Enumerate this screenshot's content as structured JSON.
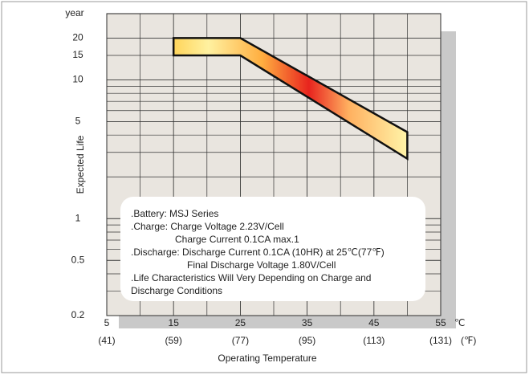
{
  "chart_data": {
    "type": "band",
    "y_label": "Expected Life",
    "y_unit": "year",
    "x_label": "Operating Temperature",
    "x_unit": "℃",
    "x2_unit": "(℉)",
    "xlim": [
      5,
      55
    ],
    "xticks": [
      5,
      15,
      25,
      35,
      45,
      55
    ],
    "x2ticks": [
      {
        "value": 5,
        "label": "(41)"
      },
      {
        "value": 15,
        "label": "(59)"
      },
      {
        "value": 25,
        "label": "(77)"
      },
      {
        "value": 35,
        "label": "(95)"
      },
      {
        "value": 45,
        "label": "(113)"
      },
      {
        "value": 55,
        "label": "(131)"
      }
    ],
    "ylim": [
      0.2,
      30
    ],
    "yticks": [
      0.2,
      0.5,
      1,
      5,
      10,
      15,
      20
    ],
    "log_y": true,
    "grid": true,
    "series": [
      {
        "x": [
          15,
          25,
          50
        ],
        "values": [
          20,
          20,
          4.2
        ]
      },
      {
        "x": [
          15,
          25,
          50
        ],
        "values": [
          15,
          15,
          2.7
        ]
      }
    ],
    "notes": [
      ".Battery: MSJ Series",
      ".Charge: Charge Voltage 2.23V/Cell",
      "Charge Current 0.1CA max.1",
      ".Discharge: Discharge Current 0.1CA (10HR) at 25℃(77℉)",
      "Final Discharge Voltage 1.80V/Cell",
      ".Life Characteristics Will Very Depending on Charge and",
      "Discharge Conditions"
    ]
  }
}
